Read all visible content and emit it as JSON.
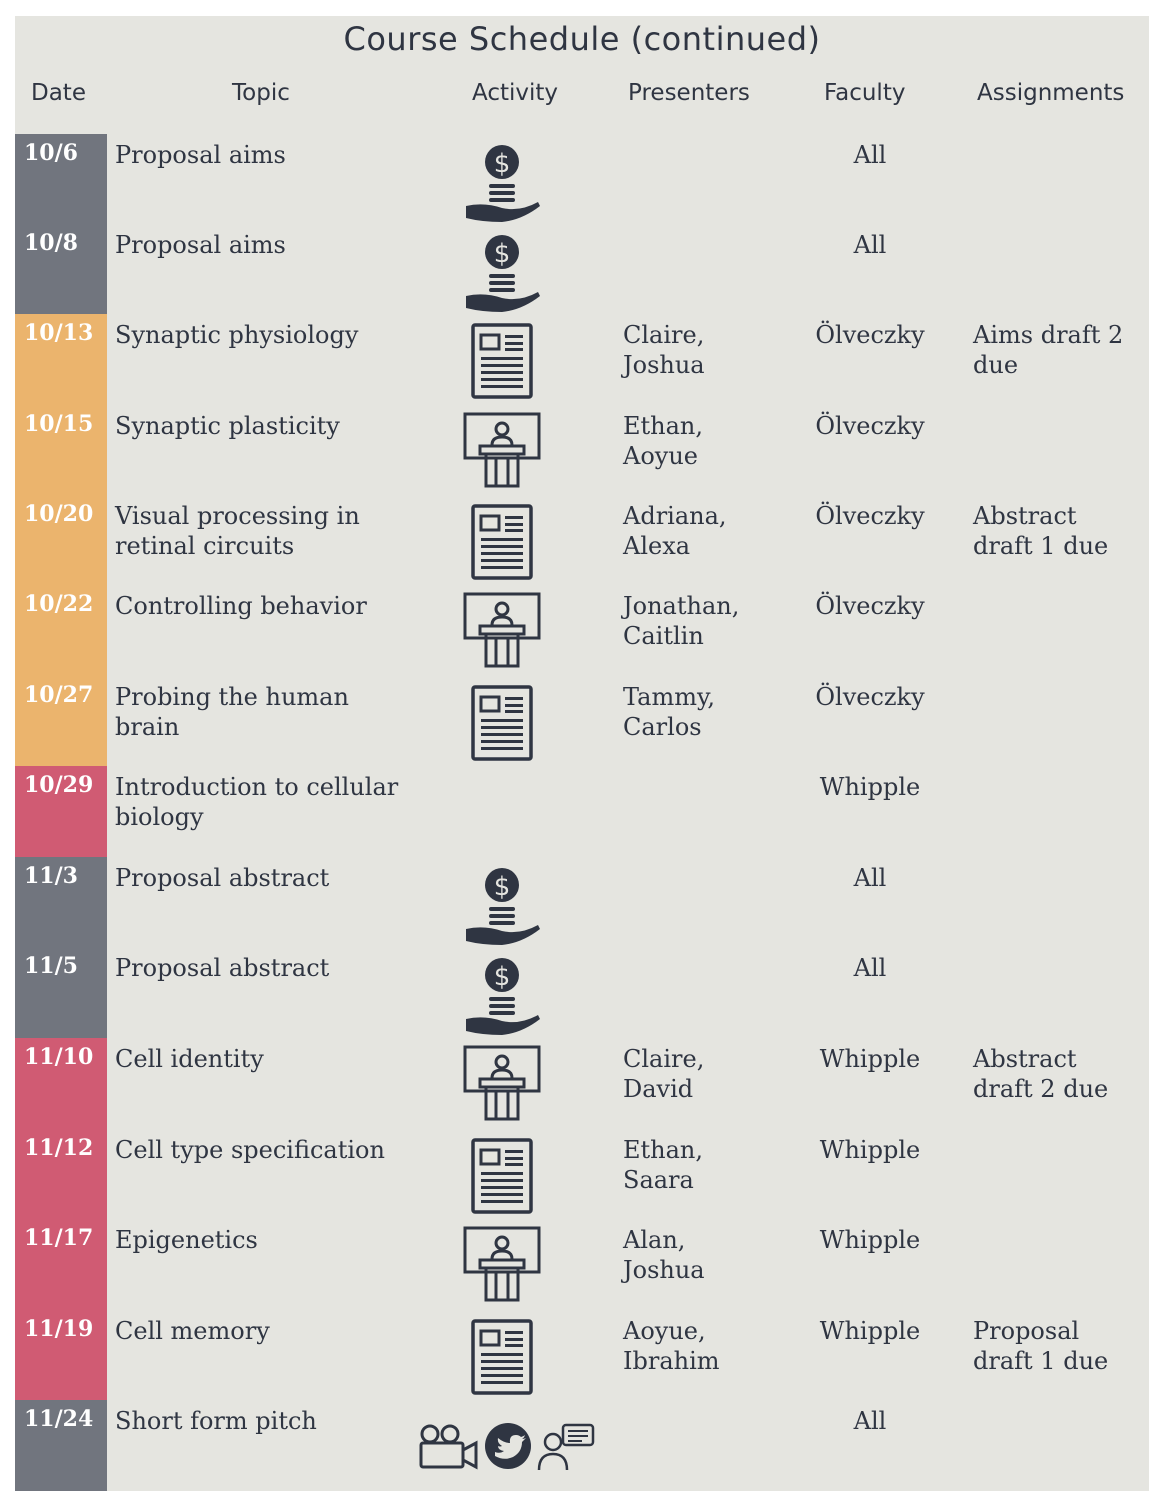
{
  "title": "Course Schedule (continued)",
  "headers": {
    "date": "Date",
    "topic": "Topic",
    "activity": "Activity",
    "presenters": "Presenters",
    "faculty": "Faculty",
    "assignments": "Assignments"
  },
  "colors": {
    "proposal": "#71757e",
    "block_olveczky": "#ebb46d",
    "block_whipple": "#d05b73",
    "background": "#e5e5e0",
    "text": "#2f3542"
  },
  "rows": [
    {
      "date": "10/6",
      "topic": [
        "Proposal aims"
      ],
      "presenters": [],
      "faculty": "All",
      "assignments": [],
      "activity": "money-hand-icon",
      "block": "proposal"
    },
    {
      "date": "10/8",
      "topic": [
        "Proposal aims"
      ],
      "presenters": [],
      "faculty": "All",
      "assignments": [],
      "activity": "money-hand-icon",
      "block": "proposal"
    },
    {
      "date": "10/13",
      "topic": [
        "Synaptic physiology"
      ],
      "presenters": [
        "Claire,",
        "Joshua"
      ],
      "faculty": "Ölveczky",
      "assignments": [
        "Aims draft 2",
        "due"
      ],
      "activity": "paper-icon",
      "block": "olveczky"
    },
    {
      "date": "10/15",
      "topic": [
        "Synaptic plasticity"
      ],
      "presenters": [
        "Ethan,",
        "Aoyue"
      ],
      "faculty": "Ölveczky",
      "assignments": [],
      "activity": "lecture-podium-icon",
      "block": "olveczky"
    },
    {
      "date": "10/20",
      "topic": [
        "Visual processing in",
        "retinal circuits"
      ],
      "presenters": [
        "Adriana,",
        "Alexa"
      ],
      "faculty": "Ölveczky",
      "assignments": [
        "Abstract",
        "draft 1 due"
      ],
      "activity": "paper-icon",
      "block": "olveczky"
    },
    {
      "date": "10/22",
      "topic": [
        "Controlling behavior"
      ],
      "presenters": [
        "Jonathan,",
        "Caitlin"
      ],
      "faculty": "Ölveczky",
      "assignments": [],
      "activity": "lecture-podium-icon",
      "block": "olveczky"
    },
    {
      "date": "10/27",
      "topic": [
        "Probing the human",
        "brain"
      ],
      "presenters": [
        "Tammy,",
        "Carlos"
      ],
      "faculty": "Ölveczky",
      "assignments": [],
      "activity": "paper-icon",
      "block": "olveczky"
    },
    {
      "date": "10/29",
      "topic": [
        "Introduction to cellular",
        "biology"
      ],
      "presenters": [],
      "faculty": "Whipple",
      "assignments": [],
      "activity": "",
      "block": "whipple"
    },
    {
      "date": "11/3",
      "topic": [
        "Proposal abstract"
      ],
      "presenters": [],
      "faculty": "All",
      "assignments": [],
      "activity": "money-hand-icon",
      "block": "proposal"
    },
    {
      "date": "11/5",
      "topic": [
        "Proposal abstract"
      ],
      "presenters": [],
      "faculty": "All",
      "assignments": [],
      "activity": "money-hand-icon",
      "block": "proposal"
    },
    {
      "date": "11/10",
      "topic": [
        "Cell identity"
      ],
      "presenters": [
        "Claire,",
        "David"
      ],
      "faculty": "Whipple",
      "assignments": [
        "Abstract",
        "draft 2 due"
      ],
      "activity": "lecture-podium-icon",
      "block": "whipple"
    },
    {
      "date": "11/12",
      "topic": [
        "Cell type specification"
      ],
      "presenters": [
        "Ethan,",
        "Saara"
      ],
      "faculty": "Whipple",
      "assignments": [],
      "activity": "paper-icon",
      "block": "whipple"
    },
    {
      "date": "11/17",
      "topic": [
        "Epigenetics"
      ],
      "presenters": [
        "Alan,",
        "Joshua"
      ],
      "faculty": "Whipple",
      "assignments": [],
      "activity": "lecture-podium-icon",
      "block": "whipple"
    },
    {
      "date": "11/19",
      "topic": [
        "Cell memory"
      ],
      "presenters": [
        "Aoyue,",
        "Ibrahim"
      ],
      "faculty": "Whipple",
      "assignments": [
        "Proposal",
        "draft 1 due"
      ],
      "activity": "paper-icon",
      "block": "whipple"
    },
    {
      "date": "11/24",
      "topic": [
        "Short form pitch"
      ],
      "presenters": [],
      "faculty": "All",
      "assignments": [],
      "activity": "pitch-media-icons",
      "block": "proposal"
    }
  ]
}
